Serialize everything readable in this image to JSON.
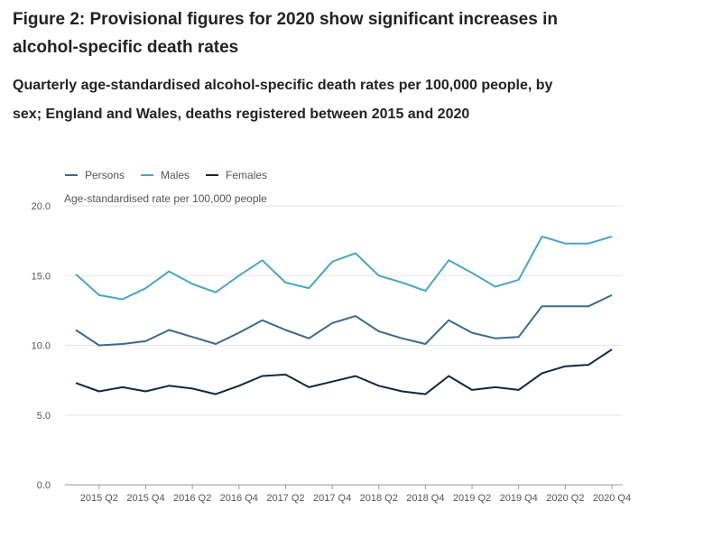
{
  "header": {
    "title": "Figure 2: Provisional figures for 2020 show significant increases in alcohol-specific death rates",
    "subtitle": "Quarterly age-standardised alcohol-specific death rates per 100,000 people, by sex; England and Wales, deaths registered between 2015 and 2020"
  },
  "colors": {
    "persons": "#3c6a8a",
    "males": "#4aa6c0",
    "females": "#0d2a3c",
    "grid": "#e6e6e6",
    "axis": "#999999"
  },
  "chart_data": {
    "type": "line",
    "ylabel": "Age-standardised rate per 100,000 people",
    "ylim": [
      0,
      20
    ],
    "yticks": [
      "0.0",
      "5.0",
      "10.0",
      "15.0",
      "20.0"
    ],
    "grid": true,
    "legend_position": "top-left",
    "x": [
      "2015 Q1",
      "2015 Q2",
      "2015 Q3",
      "2015 Q4",
      "2016 Q1",
      "2016 Q2",
      "2016 Q3",
      "2016 Q4",
      "2017 Q1",
      "2017 Q2",
      "2017 Q3",
      "2017 Q4",
      "2018 Q1",
      "2018 Q2",
      "2018 Q3",
      "2018 Q4",
      "2019 Q1",
      "2019 Q2",
      "2019 Q3",
      "2019 Q4",
      "2020 Q1",
      "2020 Q2",
      "2020 Q3",
      "2020 Q4"
    ],
    "xtick_labels": [
      "2015 Q2",
      "2015 Q4",
      "2016 Q2",
      "2016 Q4",
      "2017 Q2",
      "2017 Q4",
      "2018 Q2",
      "2018 Q4",
      "2019 Q2",
      "2019 Q4",
      "2020 Q2",
      "2020 Q4"
    ],
    "series": [
      {
        "name": "Persons",
        "values": [
          11.1,
          10.0,
          10.1,
          10.3,
          11.1,
          10.6,
          10.1,
          10.9,
          11.8,
          11.1,
          10.5,
          11.6,
          12.1,
          11.0,
          10.5,
          10.1,
          11.8,
          10.9,
          10.5,
          10.6,
          12.8,
          12.8,
          12.8,
          13.6
        ]
      },
      {
        "name": "Males",
        "values": [
          15.1,
          13.6,
          13.3,
          14.1,
          15.3,
          14.4,
          13.8,
          15.0,
          16.1,
          14.5,
          14.1,
          16.0,
          16.6,
          15.0,
          14.5,
          13.9,
          16.1,
          15.2,
          14.2,
          14.7,
          17.8,
          17.3,
          17.3,
          17.8
        ]
      },
      {
        "name": "Females",
        "values": [
          7.3,
          6.7,
          7.0,
          6.7,
          7.1,
          6.9,
          6.5,
          7.1,
          7.8,
          7.9,
          7.0,
          7.4,
          7.8,
          7.1,
          6.7,
          6.5,
          7.8,
          6.8,
          7.0,
          6.8,
          8.0,
          8.5,
          8.6,
          9.7
        ]
      }
    ]
  }
}
